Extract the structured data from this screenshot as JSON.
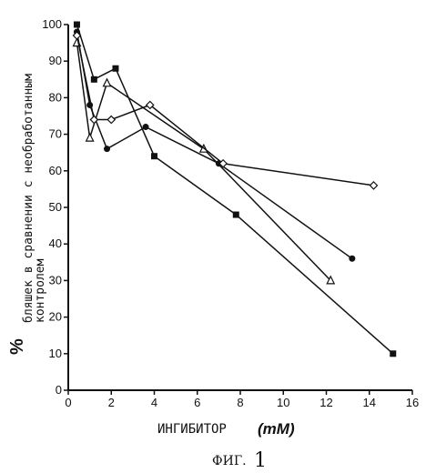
{
  "figure": {
    "caption_prefix": "ФИГ.",
    "caption_number": "1"
  },
  "chart_data": {
    "type": "line",
    "title": "",
    "xlabel_word": "ИНГИБИТОР",
    "xlabel_unit": "(mM)",
    "ylabel_percent": "%",
    "ylabel_line1": "бляшек в сравнении с необработанным",
    "ylabel_line2": "контролем",
    "xlim": [
      0,
      16
    ],
    "ylim": [
      0,
      100
    ],
    "xticks": [
      0,
      2,
      4,
      6,
      8,
      10,
      12,
      14,
      16
    ],
    "yticks": [
      0,
      10,
      20,
      30,
      40,
      50,
      60,
      70,
      80,
      90,
      100
    ],
    "grid": false,
    "series": [
      {
        "marker": "filled-square",
        "color": "#111111",
        "x": [
          0.4,
          1.2,
          2.2,
          4.0,
          7.8,
          15.1
        ],
        "y": [
          100,
          85,
          88,
          64,
          48,
          10
        ]
      },
      {
        "marker": "filled-circle",
        "color": "#111111",
        "x": [
          0.4,
          1.0,
          1.8,
          3.6,
          7.0,
          13.2
        ],
        "y": [
          98,
          78,
          66,
          72,
          62,
          36
        ]
      },
      {
        "marker": "open-triangle",
        "color": "#111111",
        "x": [
          0.4,
          1.0,
          1.8,
          6.3,
          12.2
        ],
        "y": [
          95,
          69,
          84,
          66,
          30
        ]
      },
      {
        "marker": "open-diamond",
        "color": "#111111",
        "x": [
          0.4,
          1.2,
          2.0,
          3.8,
          7.2,
          14.2
        ],
        "y": [
          97,
          74,
          74,
          78,
          62,
          56
        ]
      }
    ]
  }
}
